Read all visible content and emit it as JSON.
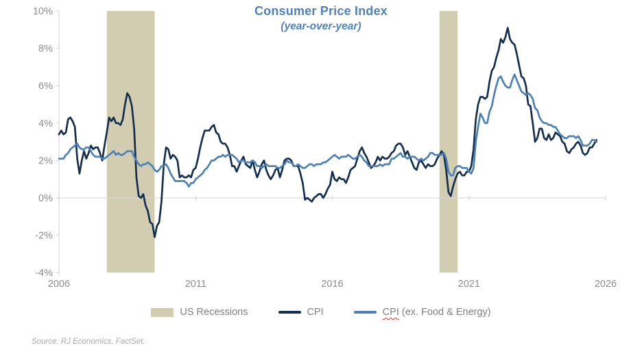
{
  "title": {
    "text": "Consumer Price Index",
    "subtitle": "(year-over-year)",
    "color": "#4e81bd"
  },
  "legend": {
    "text_color": "#7f7f7f",
    "items": [
      {
        "type": "band",
        "label": "US Recessions",
        "color": "#d2ccb0"
      },
      {
        "type": "line",
        "label": "CPI",
        "color": "#142e4f"
      },
      {
        "type": "line",
        "label_main": "CPI",
        "label_rest": " (ex. Food & Energy)",
        "color": "#4d80b6",
        "spellcheck_squiggle": true
      }
    ]
  },
  "source_note": {
    "text": "Source: RJ Economics, FactSet.",
    "color": "#a9a9a9"
  },
  "colors": {
    "cpi_line": "#142e4f",
    "core_cpi_line": "#4d80b6",
    "recession_band": "#d2ccb0",
    "grid_axis": "#d9d9d9",
    "tick_text": "#8c8c8c",
    "title_blue": "#4e81bd",
    "squiggle_red": "#d93025"
  },
  "chart_data": {
    "type": "line",
    "title": "Consumer Price Index",
    "subtitle": "(year-over-year)",
    "frequency": "monthly",
    "x_range": [
      "2006-01",
      "2025-09"
    ],
    "xlim": [
      2006,
      2026
    ],
    "ylim": [
      -4,
      10
    ],
    "grid": "horizontal line at 0% only",
    "legend_position": "bottom-center",
    "y_ticks": [
      {
        "value": 10,
        "label": "10%"
      },
      {
        "value": 8,
        "label": "8%"
      },
      {
        "value": 6,
        "label": "6%"
      },
      {
        "value": 4,
        "label": "4%"
      },
      {
        "value": 2,
        "label": "2%"
      },
      {
        "value": 0,
        "label": "0%"
      },
      {
        "value": -2,
        "label": "-2%"
      },
      {
        "value": -4,
        "label": "-4%"
      }
    ],
    "x_ticks": [
      {
        "value": 2006,
        "label": "2006"
      },
      {
        "value": 2011,
        "label": "2011"
      },
      {
        "value": 2016,
        "label": "2016"
      },
      {
        "value": 2021,
        "label": "2021"
      },
      {
        "value": 2026,
        "label": "2026"
      }
    ],
    "recession_bands": {
      "label": "US Recessions",
      "color": "#d2ccb0",
      "ranges": [
        {
          "start": 2007.75,
          "end": 2009.5
        },
        {
          "start": 2019.92,
          "end": 2020.58
        }
      ]
    },
    "series": [
      {
        "name": "CPI",
        "color": "#142e4f",
        "values_by_year": {
          "2006": [
            3.4,
            3.6,
            3.4,
            3.5,
            4.2,
            4.3,
            4.1,
            3.8,
            2.1,
            1.3,
            2.0,
            2.5
          ],
          "2007": [
            2.1,
            2.4,
            2.8,
            2.6,
            2.7,
            2.7,
            2.4,
            2.0,
            2.8,
            3.5,
            4.3,
            4.1
          ],
          "2008": [
            4.3,
            4.0,
            4.0,
            3.9,
            4.2,
            5.0,
            5.6,
            5.4,
            4.9,
            3.7,
            1.1,
            0.1
          ],
          "2009": [
            0.0,
            0.2,
            -0.4,
            -0.7,
            -1.3,
            -1.4,
            -2.1,
            -1.5,
            -1.3,
            -0.2,
            1.8,
            2.7
          ],
          "2010": [
            2.6,
            2.1,
            2.3,
            2.2,
            2.0,
            1.1,
            1.2,
            1.1,
            1.1,
            1.2,
            1.1,
            1.5
          ],
          "2011": [
            1.6,
            2.1,
            2.7,
            3.2,
            3.6,
            3.6,
            3.6,
            3.8,
            3.9,
            3.5,
            3.4,
            3.0
          ],
          "2012": [
            2.9,
            2.9,
            2.7,
            2.3,
            1.7,
            1.7,
            1.4,
            1.7,
            2.0,
            2.2,
            1.8,
            1.7
          ],
          "2013": [
            1.6,
            2.0,
            1.5,
            1.1,
            1.4,
            1.8,
            2.0,
            1.5,
            1.2,
            1.0,
            1.2,
            1.5
          ],
          "2014": [
            1.6,
            1.1,
            1.5,
            2.0,
            2.1,
            2.1,
            2.0,
            1.7,
            1.7,
            1.7,
            1.3,
            0.8
          ],
          "2015": [
            -0.1,
            0.0,
            -0.1,
            -0.2,
            0.0,
            0.1,
            0.2,
            0.2,
            0.0,
            0.2,
            0.5,
            0.7
          ],
          "2016": [
            1.4,
            1.0,
            0.9,
            1.1,
            1.0,
            1.0,
            0.8,
            1.1,
            1.5,
            1.6,
            1.7,
            2.1
          ],
          "2017": [
            2.5,
            2.7,
            2.4,
            2.2,
            1.9,
            1.6,
            1.7,
            1.9,
            2.2,
            2.0,
            2.2,
            2.1
          ],
          "2018": [
            2.1,
            2.2,
            2.4,
            2.5,
            2.8,
            2.9,
            2.9,
            2.7,
            2.3,
            2.5,
            2.2,
            1.9
          ],
          "2019": [
            1.6,
            1.5,
            1.9,
            2.0,
            1.8,
            1.6,
            1.8,
            1.7,
            1.7,
            1.8,
            2.1,
            2.3
          ],
          "2020": [
            2.5,
            2.3,
            1.5,
            0.3,
            0.1,
            0.6,
            1.0,
            1.3,
            1.4,
            1.2,
            1.2,
            1.4
          ],
          "2021": [
            1.4,
            1.7,
            2.6,
            4.2,
            5.0,
            5.4,
            5.4,
            5.3,
            5.4,
            6.2,
            6.8,
            7.0
          ],
          "2022": [
            7.5,
            7.9,
            8.5,
            8.3,
            8.6,
            9.1,
            8.5,
            8.3,
            8.2,
            7.7,
            7.1,
            6.5
          ],
          "2023": [
            6.4,
            6.0,
            5.0,
            4.9,
            4.0,
            3.0,
            3.2,
            3.7,
            3.7,
            3.2,
            3.1,
            3.4
          ],
          "2024": [
            3.1,
            3.2,
            3.5,
            3.4,
            3.3,
            3.0,
            2.9,
            2.5,
            2.4,
            2.6,
            2.7,
            2.9
          ],
          "2025": [
            3.0,
            2.8,
            2.4,
            2.3,
            2.4,
            2.7,
            2.7,
            2.9,
            3.1
          ]
        }
      },
      {
        "name": "CPI (ex. Food & Energy)",
        "color": "#4d80b6",
        "values_by_year": {
          "2006": [
            2.1,
            2.1,
            2.1,
            2.3,
            2.4,
            2.6,
            2.7,
            2.8,
            2.9,
            2.7,
            2.6,
            2.6
          ],
          "2007": [
            2.7,
            2.7,
            2.5,
            2.3,
            2.2,
            2.2,
            2.2,
            2.1,
            2.1,
            2.2,
            2.3,
            2.4
          ],
          "2008": [
            2.5,
            2.3,
            2.4,
            2.3,
            2.3,
            2.4,
            2.5,
            2.5,
            2.5,
            2.2,
            2.0,
            1.8
          ],
          "2009": [
            1.7,
            1.8,
            1.8,
            1.9,
            1.8,
            1.7,
            1.5,
            1.4,
            1.5,
            1.7,
            1.7,
            1.8
          ],
          "2010": [
            1.6,
            1.3,
            1.1,
            0.9,
            0.9,
            0.9,
            0.9,
            0.9,
            0.8,
            0.6,
            0.8,
            0.8
          ],
          "2011": [
            1.0,
            1.1,
            1.2,
            1.3,
            1.5,
            1.6,
            1.8,
            2.0,
            2.0,
            2.1,
            2.2,
            2.2
          ],
          "2012": [
            2.3,
            2.2,
            2.3,
            2.3,
            2.3,
            2.2,
            2.1,
            1.9,
            2.0,
            2.0,
            1.9,
            1.9
          ],
          "2013": [
            1.9,
            2.0,
            1.9,
            1.7,
            1.7,
            1.6,
            1.7,
            1.8,
            1.7,
            1.7,
            1.7,
            1.7
          ],
          "2014": [
            1.6,
            1.6,
            1.7,
            1.8,
            2.0,
            1.9,
            1.9,
            1.7,
            1.7,
            1.8,
            1.7,
            1.6
          ],
          "2015": [
            1.6,
            1.7,
            1.8,
            1.8,
            1.7,
            1.8,
            1.8,
            1.8,
            1.9,
            1.9,
            2.0,
            2.1
          ],
          "2016": [
            2.2,
            2.3,
            2.2,
            2.1,
            2.2,
            2.2,
            2.2,
            2.3,
            2.2,
            2.1,
            2.1,
            2.2
          ],
          "2017": [
            2.3,
            2.2,
            2.0,
            1.9,
            1.7,
            1.7,
            1.7,
            1.7,
            1.7,
            1.8,
            1.7,
            1.8
          ],
          "2018": [
            1.8,
            1.8,
            2.1,
            2.1,
            2.2,
            2.3,
            2.4,
            2.2,
            2.2,
            2.1,
            2.2,
            2.2
          ],
          "2019": [
            2.2,
            2.1,
            2.0,
            2.1,
            2.0,
            2.1,
            2.2,
            2.4,
            2.4,
            2.3,
            2.3,
            2.3
          ],
          "2020": [
            2.3,
            2.4,
            2.1,
            1.4,
            1.2,
            1.2,
            1.6,
            1.7,
            1.7,
            1.6,
            1.6,
            1.6
          ],
          "2021": [
            1.4,
            1.3,
            1.6,
            3.0,
            3.8,
            4.5,
            4.3,
            4.0,
            4.0,
            4.6,
            4.9,
            5.5
          ],
          "2022": [
            6.0,
            6.4,
            6.5,
            6.2,
            6.0,
            5.9,
            5.9,
            6.3,
            6.6,
            6.3,
            6.0,
            5.7
          ],
          "2023": [
            5.6,
            5.5,
            5.6,
            5.5,
            5.3,
            4.8,
            4.7,
            4.3,
            4.1,
            4.0,
            4.0,
            3.9
          ],
          "2024": [
            3.9,
            3.8,
            3.8,
            3.6,
            3.4,
            3.3,
            3.2,
            3.2,
            3.3,
            3.3,
            3.3,
            3.2
          ],
          "2025": [
            3.3,
            3.1,
            2.8,
            2.8,
            2.8,
            2.9,
            3.1,
            3.1,
            3.0
          ]
        }
      }
    ]
  }
}
